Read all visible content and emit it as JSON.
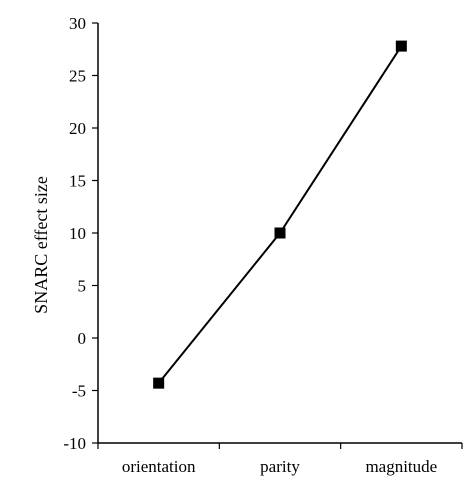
{
  "chart_data": {
    "type": "line",
    "title": "",
    "xlabel": "",
    "ylabel": "SNARC effect size",
    "categories": [
      "orientation",
      "parity",
      "magnitude"
    ],
    "series": [
      {
        "values": [
          -4.3,
          10.0,
          27.8
        ]
      }
    ],
    "ylim": [
      -10,
      30
    ],
    "yticks": [
      -10,
      -5,
      0,
      5,
      10,
      15,
      20,
      25,
      30
    ],
    "ytick_labels": [
      "-10",
      "-5",
      "0",
      "5",
      "10",
      "15",
      "20",
      "25",
      "30"
    ],
    "grid": false,
    "legend": "none",
    "marker": "square",
    "colors": {
      "line": "#000000",
      "marker": "#000000",
      "axis": "#000000"
    }
  }
}
